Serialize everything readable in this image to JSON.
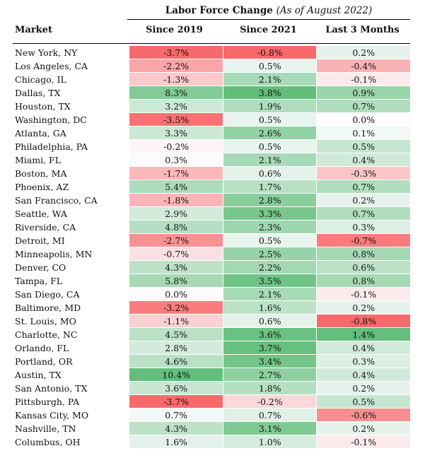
{
  "chart_data": {
    "type": "table",
    "title": "Labor Force Change",
    "title_note": "(As of August 2022)",
    "columns": [
      "Market",
      "Since 2019",
      "Since 2021",
      "Last 3 Months"
    ],
    "unit": "%",
    "colors": {
      "negative": "#f8696b",
      "neutral": "#fcfcff",
      "positive": "#63be7b"
    },
    "rows": [
      {
        "market": "New York, NY",
        "since_2019": -3.7,
        "since_2021": -0.8,
        "last_3_months": 0.2
      },
      {
        "market": "Los Angeles, CA",
        "since_2019": -2.2,
        "since_2021": 0.5,
        "last_3_months": -0.4
      },
      {
        "market": "Chicago, IL",
        "since_2019": -1.3,
        "since_2021": 2.1,
        "last_3_months": -0.1
      },
      {
        "market": "Dallas, TX",
        "since_2019": 8.3,
        "since_2021": 3.8,
        "last_3_months": 0.9
      },
      {
        "market": "Houston, TX",
        "since_2019": 3.2,
        "since_2021": 1.9,
        "last_3_months": 0.7
      },
      {
        "market": "Washington, DC",
        "since_2019": -3.5,
        "since_2021": 0.5,
        "last_3_months": 0.0
      },
      {
        "market": "Atlanta, GA",
        "since_2019": 3.3,
        "since_2021": 2.6,
        "last_3_months": 0.1
      },
      {
        "market": "Philadelphia, PA",
        "since_2019": -0.2,
        "since_2021": 0.5,
        "last_3_months": 0.5
      },
      {
        "market": "Miami, FL",
        "since_2019": 0.3,
        "since_2021": 2.1,
        "last_3_months": 0.4
      },
      {
        "market": "Boston, MA",
        "since_2019": -1.7,
        "since_2021": 0.6,
        "last_3_months": -0.3
      },
      {
        "market": "Phoenix, AZ",
        "since_2019": 5.4,
        "since_2021": 1.7,
        "last_3_months": 0.7
      },
      {
        "market": "San Francisco, CA",
        "since_2019": -1.8,
        "since_2021": 2.8,
        "last_3_months": 0.2
      },
      {
        "market": "Seattle, WA",
        "since_2019": 2.9,
        "since_2021": 3.3,
        "last_3_months": 0.7
      },
      {
        "market": "Riverside, CA",
        "since_2019": 4.8,
        "since_2021": 2.3,
        "last_3_months": 0.3
      },
      {
        "market": "Detroit, MI",
        "since_2019": -2.7,
        "since_2021": 0.5,
        "last_3_months": -0.7
      },
      {
        "market": "Minneapolis, MN",
        "since_2019": -0.7,
        "since_2021": 2.5,
        "last_3_months": 0.8
      },
      {
        "market": "Denver, CO",
        "since_2019": 4.3,
        "since_2021": 2.2,
        "last_3_months": 0.6
      },
      {
        "market": "Tampa, FL",
        "since_2019": 5.8,
        "since_2021": 3.5,
        "last_3_months": 0.8
      },
      {
        "market": "San Diego, CA",
        "since_2019": 0.0,
        "since_2021": 2.1,
        "last_3_months": -0.1
      },
      {
        "market": "Baltimore, MD",
        "since_2019": -3.2,
        "since_2021": 1.6,
        "last_3_months": 0.2
      },
      {
        "market": "St. Louis, MO",
        "since_2019": -1.1,
        "since_2021": 0.6,
        "last_3_months": -0.8
      },
      {
        "market": "Charlotte, NC",
        "since_2019": 4.5,
        "since_2021": 3.6,
        "last_3_months": 1.4
      },
      {
        "market": "Orlando, FL",
        "since_2019": 2.8,
        "since_2021": 3.7,
        "last_3_months": 0.4
      },
      {
        "market": "Portland, OR",
        "since_2019": 4.6,
        "since_2021": 3.4,
        "last_3_months": 0.3
      },
      {
        "market": "Austin, TX",
        "since_2019": 10.4,
        "since_2021": 2.7,
        "last_3_months": 0.4
      },
      {
        "market": "San Antonio, TX",
        "since_2019": 3.6,
        "since_2021": 1.8,
        "last_3_months": 0.2
      },
      {
        "market": "Pittsburgh, PA",
        "since_2019": -3.7,
        "since_2021": -0.2,
        "last_3_months": 0.5
      },
      {
        "market": "Kansas City, MO",
        "since_2019": 0.7,
        "since_2021": 0.7,
        "last_3_months": -0.6
      },
      {
        "market": "Nashville, TN",
        "since_2019": 4.3,
        "since_2021": 3.1,
        "last_3_months": 0.2
      },
      {
        "market": "Columbus, OH",
        "since_2019": 1.6,
        "since_2021": 1.0,
        "last_3_months": -0.1
      }
    ]
  }
}
